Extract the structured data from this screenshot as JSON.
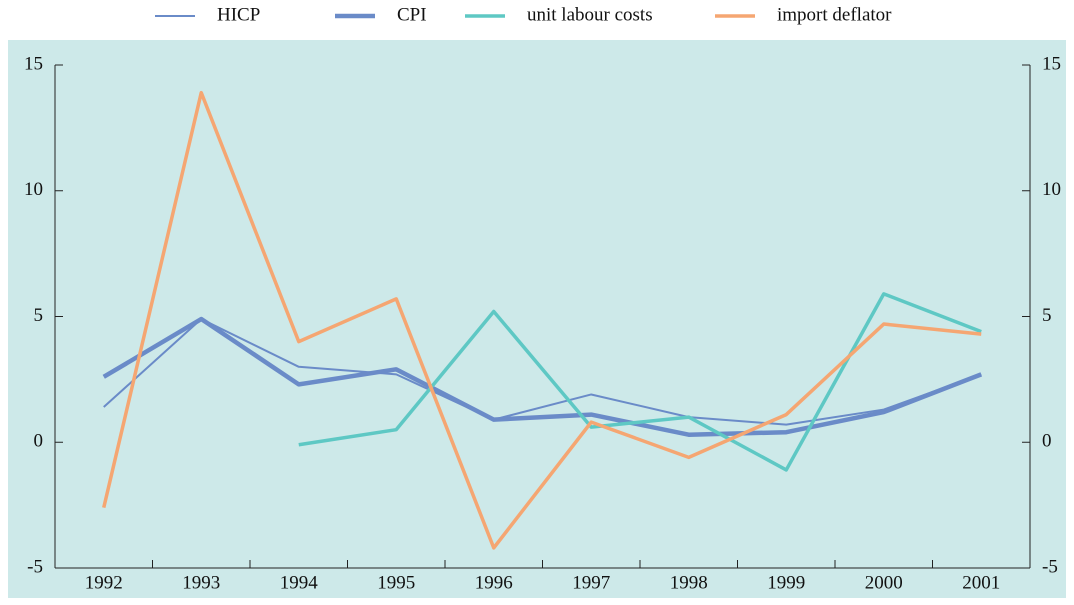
{
  "chart_data": {
    "type": "line",
    "categories": [
      "1992",
      "1993",
      "1994",
      "1995",
      "1996",
      "1997",
      "1998",
      "1999",
      "2000",
      "2001"
    ],
    "series": [
      {
        "name": "HICP",
        "color": "#6a8bc8",
        "width": 2,
        "values": [
          1.4,
          4.9,
          3.0,
          2.7,
          0.9,
          1.9,
          1.0,
          0.7,
          1.3,
          2.7
        ]
      },
      {
        "name": "CPI",
        "color": "#6a8bc8",
        "width": 4.5,
        "values": [
          2.6,
          4.9,
          2.3,
          2.9,
          0.9,
          1.1,
          0.3,
          0.4,
          1.2,
          2.7
        ]
      },
      {
        "name": "unit labour costs",
        "color": "#5ec8c4",
        "width": 3.5,
        "values": [
          null,
          null,
          -0.1,
          0.5,
          5.2,
          0.6,
          1.0,
          -1.1,
          5.9,
          4.4
        ]
      },
      {
        "name": "import deflator",
        "color": "#f5a672",
        "width": 3.5,
        "values": [
          -2.6,
          13.9,
          4.0,
          5.7,
          -4.2,
          0.8,
          -0.6,
          1.1,
          4.7,
          4.3
        ]
      }
    ],
    "ylim": [
      -5,
      15
    ],
    "yticks": [
      -5,
      0,
      5,
      10,
      15
    ],
    "background": "#cde9e9"
  }
}
